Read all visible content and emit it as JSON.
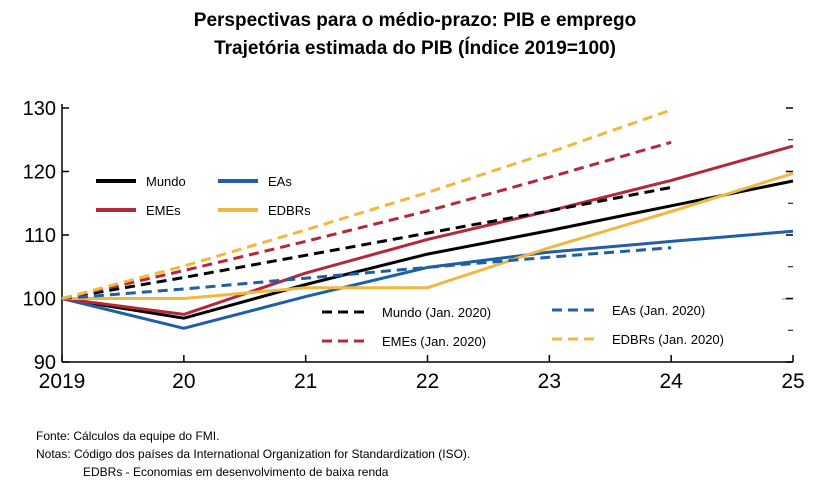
{
  "title": "Perspectivas para o médio-prazo: PIB e emprego",
  "subtitle": "Trajetória estimada do PIB (Índice 2019=100)",
  "chart_data": {
    "type": "line",
    "title": "Perspectivas para o médio-prazo: PIB e emprego",
    "subtitle": "Trajetória estimada do PIB (Índice 2019=100)",
    "x_tick_labels": [
      "2019",
      "20",
      "21",
      "22",
      "23",
      "24",
      "25"
    ],
    "x": [
      2019,
      2020,
      2021,
      2022,
      2023,
      2024,
      2025
    ],
    "xlim": [
      2019,
      2025
    ],
    "ylim": [
      90,
      130
    ],
    "y_ticks": [
      90,
      100,
      110,
      120,
      130
    ],
    "grid": false,
    "series": [
      {
        "name": "Mundo",
        "style": "solid",
        "color": "#000000",
        "x": [
          2019,
          2020,
          2021,
          2022,
          2023,
          2024,
          2025
        ],
        "values": [
          100,
          96.9,
          102.2,
          107.0,
          110.7,
          114.6,
          118.5
        ]
      },
      {
        "name": "EAs",
        "style": "solid",
        "color": "#1f5fa6",
        "x": [
          2019,
          2020,
          2021,
          2022,
          2023,
          2024,
          2025
        ],
        "values": [
          100,
          95.3,
          100.3,
          104.9,
          107.3,
          109.0,
          110.6
        ]
      },
      {
        "name": "EMEs",
        "style": "solid",
        "color": "#b3283a",
        "x": [
          2019,
          2020,
          2021,
          2022,
          2023,
          2024,
          2025
        ],
        "values": [
          100,
          97.5,
          104.0,
          109.3,
          113.8,
          118.6,
          124.0
        ]
      },
      {
        "name": "EDBRs",
        "style": "solid",
        "color": "#f0b840",
        "x": [
          2019,
          2020,
          2021,
          2022,
          2023,
          2024,
          2025
        ],
        "values": [
          100,
          100.0,
          101.7,
          101.7,
          108.0,
          113.7,
          119.7
        ]
      },
      {
        "name": "Mundo (Jan. 2020)",
        "style": "dashed",
        "color": "#000000",
        "x": [
          2019,
          2020,
          2021,
          2022,
          2023,
          2024
        ],
        "values": [
          100,
          103.3,
          106.8,
          110.3,
          113.8,
          117.5
        ]
      },
      {
        "name": "EAs (Jan. 2020)",
        "style": "dashed",
        "color": "#1f5fa6",
        "x": [
          2019,
          2020,
          2021,
          2022,
          2023,
          2024
        ],
        "values": [
          100,
          101.5,
          103.2,
          104.9,
          106.5,
          108.0
        ]
      },
      {
        "name": "EMEs (Jan. 2020)",
        "style": "dashed",
        "color": "#b3283a",
        "x": [
          2019,
          2020,
          2021,
          2022,
          2023,
          2024
        ],
        "values": [
          100,
          104.4,
          109.0,
          113.8,
          119.1,
          124.6
        ]
      },
      {
        "name": "EDBRs (Jan. 2020)",
        "style": "dashed",
        "color": "#f0b840",
        "x": [
          2019,
          2020,
          2021,
          2022,
          2023,
          2024
        ],
        "values": [
          100,
          105.1,
          110.8,
          116.7,
          123.0,
          129.7
        ]
      }
    ],
    "legend": {
      "top_left": [
        "Mundo",
        "EAs",
        "EMEs",
        "EDBRs"
      ],
      "bottom": [
        "Mundo (Jan. 2020)",
        "EAs (Jan. 2020)",
        "EMEs  (Jan. 2020)",
        "EDBRs  (Jan. 2020)"
      ]
    }
  },
  "notes": {
    "source": "Fonte:  Cálculos da equipe do FMI.",
    "notes_line1": "Notas: Código dos países da International  Organization for Standardization (ISO).",
    "notes_line2": "EDBRs - Economias em desenvolvimento  de baixa renda"
  }
}
